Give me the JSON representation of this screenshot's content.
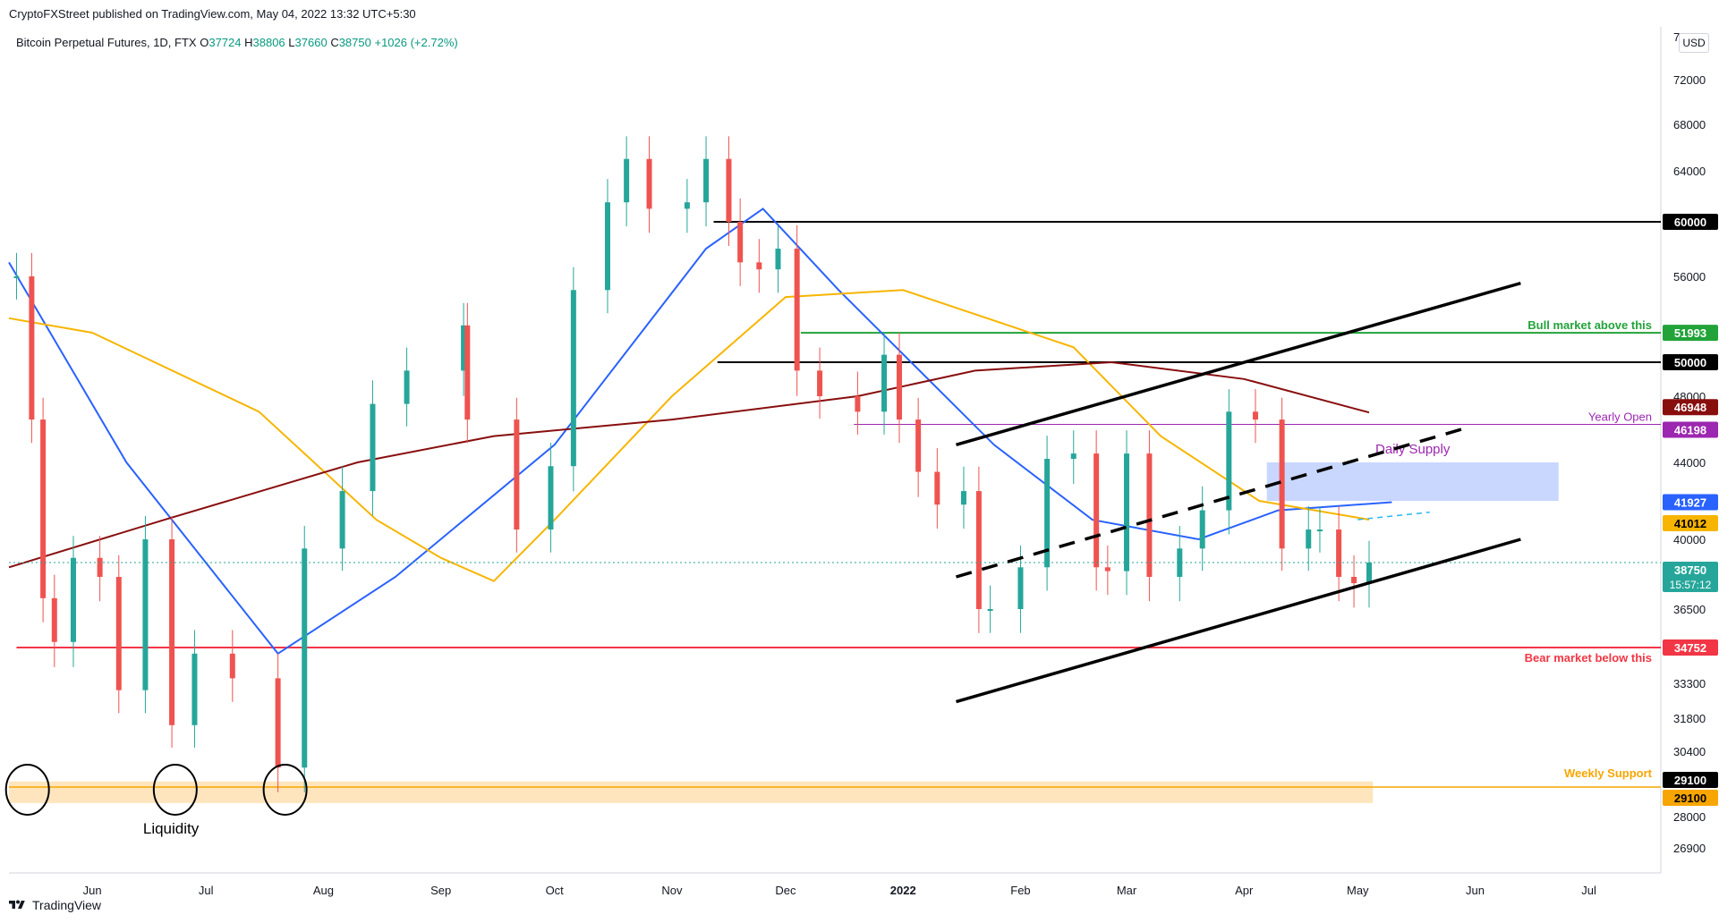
{
  "header": {
    "publisher": "CryptoFXStreet published on TradingView.com, May 04, 2022 13:32 UTC+5:30",
    "symbol": "Bitcoin Perpetual Futures, 1D, FTX",
    "o_label": "O",
    "o_value": "37724",
    "h_label": "H",
    "h_value": "38806",
    "l_label": "L",
    "l_value": "37660",
    "c_label": "C",
    "c_value": "38750",
    "change": "+1026 (+2.72%)",
    "currency_button": "USD"
  },
  "footer": {
    "brand": "TradingView"
  },
  "chart_data": {
    "type": "candlestick",
    "symbol": "Bitcoin Perpetual Futures",
    "timeframe": "1D",
    "exchange": "FTX",
    "y_scale": "log",
    "ylim": [
      26000,
      76000
    ],
    "y_ticks": [
      72000,
      68000,
      64000,
      56000,
      48000,
      44000,
      40000,
      36500,
      33300,
      31800,
      30400,
      28000,
      26900
    ],
    "x_ticks": [
      "Jun",
      "Jul",
      "Aug",
      "Sep",
      "Oct",
      "Nov",
      "Dec",
      "2022",
      "Feb",
      "Mar",
      "Apr",
      "May",
      "Jun",
      "Jul"
    ],
    "x_tick_dates": [
      "2021-06-01",
      "2021-07-01",
      "2021-08-01",
      "2021-09-01",
      "2021-10-01",
      "2021-11-01",
      "2021-12-01",
      "2022-01-01",
      "2022-02-01",
      "2022-03-01",
      "2022-04-01",
      "2022-05-01",
      "2022-06-01",
      "2022-07-01"
    ],
    "x_range": [
      "2021-05-10",
      "2022-07-20"
    ],
    "price_series_close": [
      [
        "2021-05-12",
        56000
      ],
      [
        "2021-05-16",
        46500
      ],
      [
        "2021-05-19",
        37000
      ],
      [
        "2021-05-22",
        35000
      ],
      [
        "2021-05-27",
        39000
      ],
      [
        "2021-06-03",
        38000
      ],
      [
        "2021-06-08",
        33000
      ],
      [
        "2021-06-15",
        40000
      ],
      [
        "2021-06-22",
        31500
      ],
      [
        "2021-06-28",
        34500
      ],
      [
        "2021-07-08",
        33500
      ],
      [
        "2021-07-20",
        29800
      ],
      [
        "2021-07-27",
        39500
      ],
      [
        "2021-08-06",
        42500
      ],
      [
        "2021-08-14",
        47500
      ],
      [
        "2021-08-23",
        49500
      ],
      [
        "2021-09-07",
        52500
      ],
      [
        "2021-09-08",
        46500
      ],
      [
        "2021-09-21",
        40500
      ],
      [
        "2021-09-30",
        43800
      ],
      [
        "2021-10-06",
        55000
      ],
      [
        "2021-10-15",
        61500
      ],
      [
        "2021-10-20",
        65000
      ],
      [
        "2021-10-26",
        61000
      ],
      [
        "2021-11-05",
        61500
      ],
      [
        "2021-11-10",
        65000
      ],
      [
        "2021-11-16",
        60000
      ],
      [
        "2021-11-19",
        57000
      ],
      [
        "2021-11-24",
        56500
      ],
      [
        "2021-11-29",
        58000
      ],
      [
        "2021-12-04",
        49500
      ],
      [
        "2021-12-10",
        48000
      ],
      [
        "2021-12-20",
        47000
      ],
      [
        "2021-12-27",
        50500
      ],
      [
        "2021-12-31",
        46500
      ],
      [
        "2022-01-05",
        43500
      ],
      [
        "2022-01-10",
        41800
      ],
      [
        "2022-01-17",
        42500
      ],
      [
        "2022-01-21",
        36500
      ],
      [
        "2022-01-24",
        36500
      ],
      [
        "2022-02-01",
        38500
      ],
      [
        "2022-02-08",
        44200
      ],
      [
        "2022-02-15",
        44500
      ],
      [
        "2022-02-21",
        38500
      ],
      [
        "2022-02-24",
        38300
      ],
      [
        "2022-03-01",
        44500
      ],
      [
        "2022-03-07",
        38000
      ],
      [
        "2022-03-15",
        39500
      ],
      [
        "2022-03-21",
        41500
      ],
      [
        "2022-03-28",
        47000
      ],
      [
        "2022-04-04",
        46500
      ],
      [
        "2022-04-11",
        39500
      ],
      [
        "2022-04-18",
        40500
      ],
      [
        "2022-04-21",
        40500
      ],
      [
        "2022-04-26",
        38000
      ],
      [
        "2022-04-30",
        37700
      ],
      [
        "2022-05-04",
        38750
      ]
    ],
    "indicators": [
      {
        "name": "MA blue",
        "color": "#2962ff",
        "points": [
          [
            "2021-05-10",
            57000
          ],
          [
            "2021-06-10",
            44000
          ],
          [
            "2021-07-20",
            34500
          ],
          [
            "2021-08-20",
            38000
          ],
          [
            "2021-10-01",
            45000
          ],
          [
            "2021-11-10",
            58000
          ],
          [
            "2021-11-25",
            61000
          ],
          [
            "2021-12-15",
            55000
          ],
          [
            "2022-01-25",
            45000
          ],
          [
            "2022-02-20",
            41000
          ],
          [
            "2022-03-20",
            40000
          ],
          [
            "2022-04-10",
            41500
          ],
          [
            "2022-05-10",
            41927
          ]
        ]
      },
      {
        "name": "MA orange",
        "color": "#f7b500",
        "points": [
          [
            "2021-05-10",
            53000
          ],
          [
            "2021-06-01",
            52000
          ],
          [
            "2021-07-15",
            47000
          ],
          [
            "2021-08-15",
            41000
          ],
          [
            "2021-09-01",
            39000
          ],
          [
            "2021-09-15",
            37800
          ],
          [
            "2021-10-01",
            41000
          ],
          [
            "2021-11-01",
            48000
          ],
          [
            "2021-12-01",
            54500
          ],
          [
            "2022-01-01",
            55000
          ],
          [
            "2022-02-15",
            51000
          ],
          [
            "2022-03-10",
            45500
          ],
          [
            "2022-04-05",
            42000
          ],
          [
            "2022-05-04",
            41012
          ]
        ]
      },
      {
        "name": "MA maroon",
        "color": "#880e0e",
        "points": [
          [
            "2021-05-10",
            38500
          ],
          [
            "2021-06-20",
            41000
          ],
          [
            "2021-08-10",
            44000
          ],
          [
            "2021-09-15",
            45500
          ],
          [
            "2021-11-01",
            46500
          ],
          [
            "2021-12-20",
            48000
          ],
          [
            "2022-01-20",
            49500
          ],
          [
            "2022-02-25",
            50000
          ],
          [
            "2022-04-01",
            49000
          ],
          [
            "2022-05-04",
            46948
          ]
        ]
      }
    ],
    "horizontal_levels": [
      {
        "price": 60000,
        "label": "",
        "tag": "60000",
        "color": "#000000"
      },
      {
        "price": 51993,
        "label": "Bull market above this",
        "tag": "51993",
        "color": "#22a33a"
      },
      {
        "price": 50000,
        "label": "",
        "tag": "50000",
        "color": "#000000"
      },
      {
        "price": 46198,
        "label": "Yearly Open",
        "tag": "46198",
        "color": "#9c27b0"
      },
      {
        "price": 34752,
        "label": "Bear market below this",
        "tag": "34752",
        "color": "#f23645"
      },
      {
        "price": 29100,
        "label": "Weekly Support",
        "tag": "29100",
        "color": "#f7a600"
      }
    ],
    "trendlines": [
      {
        "name": "channel upper",
        "style": "solid",
        "from": [
          "2022-01-15",
          45000
        ],
        "to": [
          "2022-06-13",
          55500
        ]
      },
      {
        "name": "channel lower",
        "style": "solid",
        "from": [
          "2022-01-15",
          32500
        ],
        "to": [
          "2022-06-13",
          40000
        ]
      },
      {
        "name": "channel mid",
        "style": "dashed",
        "from": [
          "2022-01-15",
          38000
        ],
        "to": [
          "2022-05-30",
          46000
        ]
      }
    ],
    "zones": [
      {
        "label": "Daily Supply",
        "price_from": 42000,
        "price_to": 44000,
        "date_from": "2022-04-07",
        "date_to": "2022-06-23",
        "color": "#bfd0ff"
      },
      {
        "label": "",
        "price_from": 28500,
        "price_to": 29300,
        "date_from": "2021-05-10",
        "date_to": "2022-05-05",
        "color": "#ffe0b2"
      }
    ],
    "annotations": [
      {
        "text": "Liquidity",
        "date": "2021-06-22",
        "price": 27550
      }
    ],
    "price_tags": [
      {
        "value": "46948",
        "bg": "#880e0e",
        "color": "#ffffff"
      },
      {
        "value": "41927",
        "bg": "#2962ff",
        "color": "#ffffff"
      },
      {
        "value": "41012",
        "bg": "#f7b500",
        "color": "#000000"
      },
      {
        "value": "38750",
        "sub": "15:57:12",
        "bg": "#26a69a",
        "color": "#ffffff"
      },
      {
        "value": "29100",
        "bg": "#000000",
        "color": "#ffffff"
      },
      {
        "value": "29100",
        "bg": "#f7a600",
        "color": "#000000"
      }
    ]
  }
}
